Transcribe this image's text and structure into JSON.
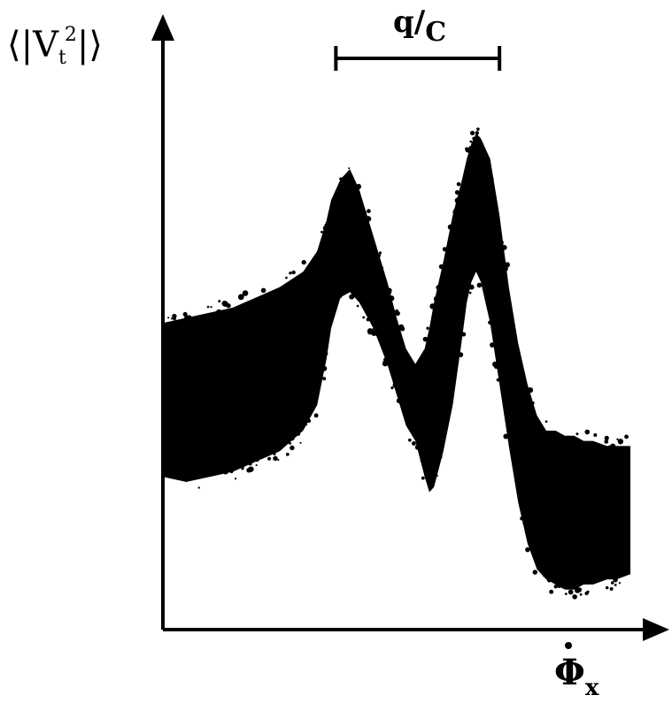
{
  "chart_data": {
    "type": "area",
    "title": "",
    "ylabel": {
      "lhs": "⟨|V",
      "sub": "t",
      "sup": "2",
      "rhs": "|⟩"
    },
    "xlabel": {
      "base": "Φ",
      "sub": "x"
    },
    "scale_bar_label": {
      "num": "q",
      "slash": "/",
      "den": "C"
    },
    "grid": false,
    "legend": "none",
    "x_range": [
      0,
      100
    ],
    "y_range": [
      0,
      100
    ],
    "scale_bar_x": [
      37,
      72
    ],
    "series": [
      {
        "x": [
          0,
          5,
          10,
          15,
          20,
          25,
          30,
          33,
          35,
          36,
          38,
          40,
          42,
          45,
          48,
          50,
          52,
          54,
          56,
          57,
          58,
          60,
          62,
          64,
          65,
          66,
          67,
          68,
          70,
          72,
          74,
          76,
          78,
          80,
          82,
          84,
          86,
          88,
          90,
          92,
          95,
          97,
          100
        ],
        "upper": [
          56,
          57,
          58,
          59,
          61,
          63,
          66,
          70,
          76,
          80,
          84,
          86,
          82,
          73,
          64,
          57,
          51,
          48,
          51,
          55,
          60,
          68,
          77,
          84,
          88,
          91,
          93,
          92,
          88,
          77,
          63,
          52,
          44,
          38,
          35,
          35,
          34,
          34,
          33,
          33,
          32,
          32,
          32
        ],
        "lower": [
          26,
          25,
          26,
          27,
          29,
          31,
          35,
          40,
          49,
          55,
          61,
          62,
          60,
          55,
          48,
          42,
          36,
          33,
          26,
          23,
          24,
          31,
          40,
          53,
          60,
          64,
          66,
          64,
          56,
          44,
          32,
          21,
          13,
          8,
          6,
          5,
          4,
          4,
          5,
          5,
          6,
          6,
          7
        ]
      }
    ]
  }
}
